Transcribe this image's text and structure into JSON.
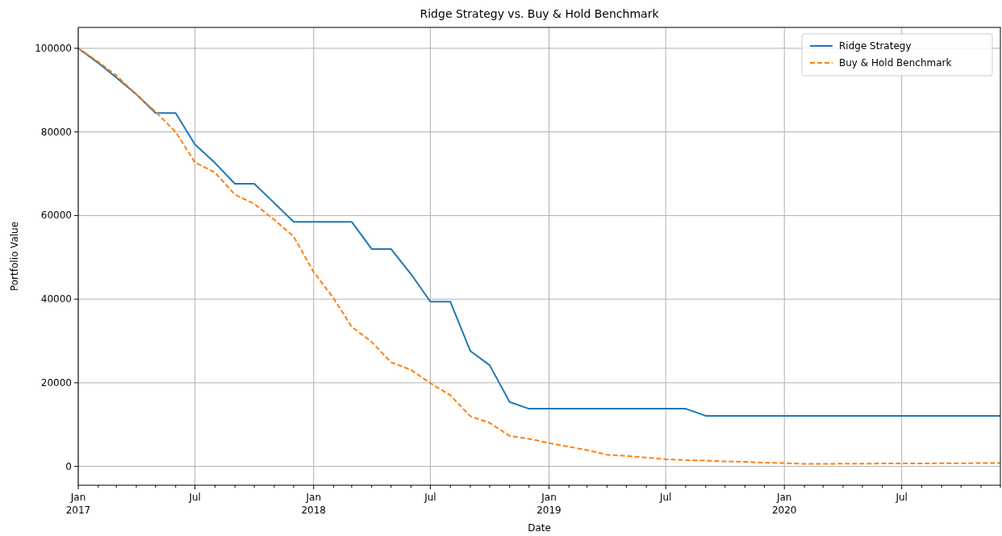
{
  "chart_data": {
    "type": "line",
    "title": "Ridge Strategy vs. Buy & Hold Benchmark",
    "xlabel": "Date",
    "ylabel": "Portfolio Value",
    "x": [
      "2017-01",
      "2017-02",
      "2017-03",
      "2017-04",
      "2017-05",
      "2017-06",
      "2017-07",
      "2017-08",
      "2017-09",
      "2017-10",
      "2017-11",
      "2017-12",
      "2018-01",
      "2018-02",
      "2018-03",
      "2018-04",
      "2018-05",
      "2018-06",
      "2018-07",
      "2018-08",
      "2018-09",
      "2018-10",
      "2018-11",
      "2018-12",
      "2019-01",
      "2019-02",
      "2019-03",
      "2019-04",
      "2019-05",
      "2019-06",
      "2019-07",
      "2019-08",
      "2019-09",
      "2019-10",
      "2019-11",
      "2019-12",
      "2020-01",
      "2020-02",
      "2020-03",
      "2020-04",
      "2020-05",
      "2020-06",
      "2020-07",
      "2020-08",
      "2020-09",
      "2020-10",
      "2020-11",
      "2020-12"
    ],
    "series": [
      {
        "name": "Ridge Strategy",
        "color": "#1f77b4",
        "line_style": "solid",
        "values": [
          100000,
          96500,
          93000,
          89000,
          84500,
          84500,
          77000,
          72600,
          67600,
          67600,
          63000,
          58500,
          58500,
          58500,
          58500,
          52000,
          52000,
          46000,
          39400,
          39400,
          27600,
          24200,
          15400,
          13800,
          13800,
          13800,
          13800,
          13800,
          13800,
          13800,
          13800,
          13800,
          12100,
          12100,
          12100,
          12100,
          12100,
          12100,
          12100,
          12100,
          12100,
          12100,
          12100,
          12100,
          12100,
          12100,
          12100,
          12100
        ]
      },
      {
        "name": "Buy & Hold Benchmark",
        "color": "#ff7f0e",
        "line_style": "dashed",
        "values": [
          100000,
          96800,
          93500,
          89000,
          84800,
          80000,
          72700,
          70300,
          65000,
          62800,
          59000,
          55000,
          46500,
          40200,
          33400,
          29800,
          24900,
          23100,
          19900,
          17000,
          12000,
          10400,
          7300,
          6600,
          5600,
          4700,
          3900,
          2800,
          2500,
          2100,
          1700,
          1500,
          1400,
          1200,
          1100,
          900,
          800,
          600,
          600,
          650,
          650,
          700,
          700,
          700,
          750,
          750,
          800,
          800
        ]
      }
    ],
    "xlim": [
      "2017-01",
      "2020-12"
    ],
    "xticks": [
      {
        "value": "2017-01",
        "label": "Jan\n2017"
      },
      {
        "value": "2017-02",
        "label": null
      },
      {
        "value": "2017-03",
        "label": null
      },
      {
        "value": "2017-04",
        "label": null
      },
      {
        "value": "2017-05",
        "label": null
      },
      {
        "value": "2017-06",
        "label": null
      },
      {
        "value": "2017-07",
        "label": "Jul"
      },
      {
        "value": "2017-08",
        "label": null
      },
      {
        "value": "2017-09",
        "label": null
      },
      {
        "value": "2017-10",
        "label": null
      },
      {
        "value": "2017-11",
        "label": null
      },
      {
        "value": "2017-12",
        "label": null
      },
      {
        "value": "2018-01",
        "label": "Jan\n2018"
      },
      {
        "value": "2018-02",
        "label": null
      },
      {
        "value": "2018-03",
        "label": null
      },
      {
        "value": "2018-04",
        "label": null
      },
      {
        "value": "2018-05",
        "label": null
      },
      {
        "value": "2018-06",
        "label": null
      },
      {
        "value": "2018-07",
        "label": "Jul"
      },
      {
        "value": "2018-08",
        "label": null
      },
      {
        "value": "2018-09",
        "label": null
      },
      {
        "value": "2018-10",
        "label": null
      },
      {
        "value": "2018-11",
        "label": null
      },
      {
        "value": "2018-12",
        "label": null
      },
      {
        "value": "2019-01",
        "label": "Jan\n2019"
      },
      {
        "value": "2019-02",
        "label": null
      },
      {
        "value": "2019-03",
        "label": null
      },
      {
        "value": "2019-04",
        "label": null
      },
      {
        "value": "2019-05",
        "label": null
      },
      {
        "value": "2019-06",
        "label": null
      },
      {
        "value": "2019-07",
        "label": "Jul"
      },
      {
        "value": "2019-08",
        "label": null
      },
      {
        "value": "2019-09",
        "label": null
      },
      {
        "value": "2019-10",
        "label": null
      },
      {
        "value": "2019-11",
        "label": null
      },
      {
        "value": "2019-12",
        "label": null
      },
      {
        "value": "2020-01",
        "label": "Jan\n2020"
      },
      {
        "value": "2020-02",
        "label": null
      },
      {
        "value": "2020-03",
        "label": null
      },
      {
        "value": "2020-04",
        "label": null
      },
      {
        "value": "2020-05",
        "label": null
      },
      {
        "value": "2020-06",
        "label": null
      },
      {
        "value": "2020-07",
        "label": "Jul"
      },
      {
        "value": "2020-08",
        "label": null
      },
      {
        "value": "2020-09",
        "label": null
      },
      {
        "value": "2020-10",
        "label": null
      },
      {
        "value": "2020-11",
        "label": null
      },
      {
        "value": "2020-12",
        "label": null
      }
    ],
    "ylim": [
      -4500,
      105000
    ],
    "yticks": [
      0,
      20000,
      40000,
      60000,
      80000,
      100000
    ],
    "grid": true,
    "legend": "top right"
  }
}
